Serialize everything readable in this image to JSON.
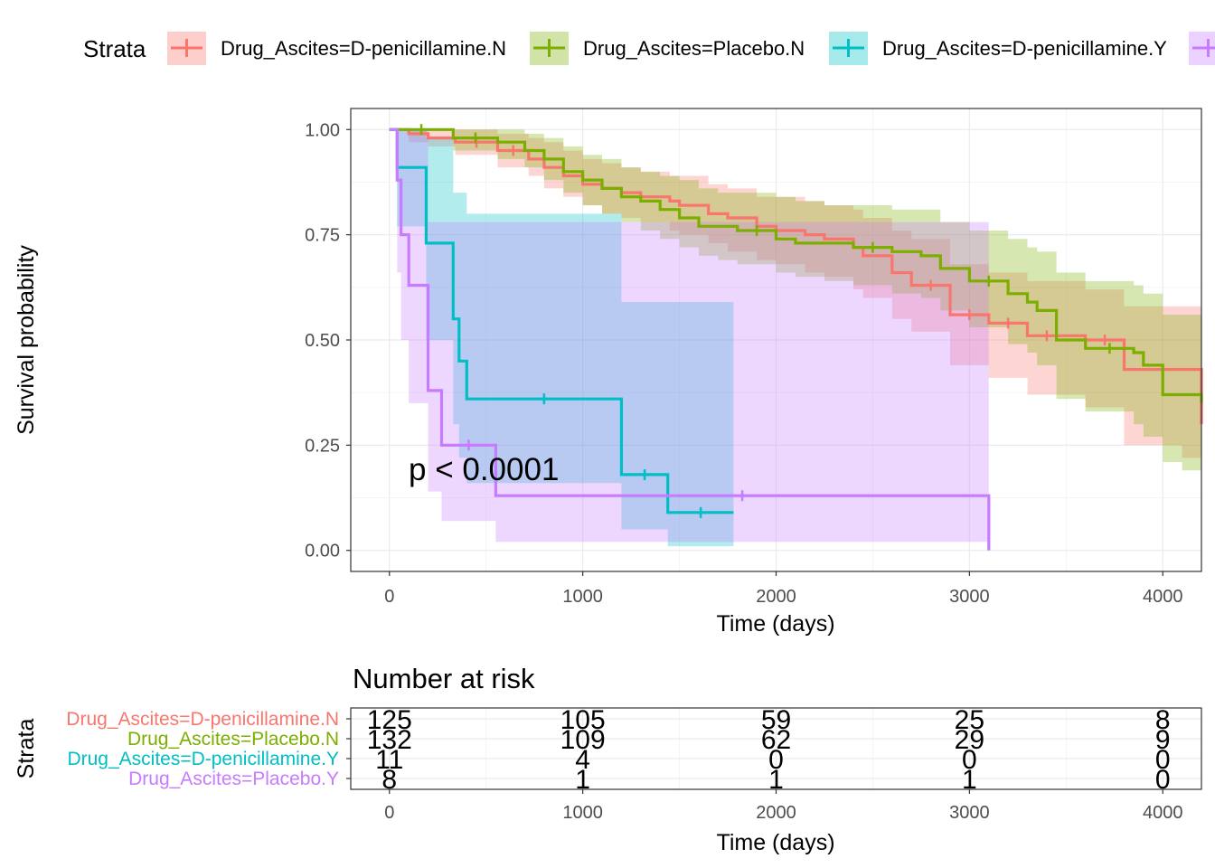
{
  "legend": {
    "title": "Strata",
    "items": [
      {
        "label": "Drug_Ascites=D-penicillamine.N",
        "color": "#f8766d"
      },
      {
        "label": "Drug_Ascites=Placebo.N",
        "color": "#7cae00"
      },
      {
        "label": "Drug_Ascites=D-penicillamine.Y",
        "color": "#00bfc4"
      },
      {
        "label": "Drug_Ascites=Placebo.Y",
        "color": "#c77cff"
      }
    ]
  },
  "chart_data": {
    "type": "line",
    "subtype": "kaplan-meier",
    "xlabel": "Time (days)",
    "ylabel": "Survival probability",
    "xlim": [
      -200,
      4200
    ],
    "ylim": [
      -0.05,
      1.05
    ],
    "xticks": [
      0,
      1000,
      2000,
      3000,
      4000
    ],
    "yticks": [
      0.0,
      0.25,
      0.5,
      0.75,
      1.0
    ],
    "ytick_labels": [
      "0.00",
      "0.25",
      "0.50",
      "0.75",
      "1.00"
    ],
    "grid": true,
    "legend_position": "top",
    "annotation": "p < 0.0001",
    "series": [
      {
        "name": "Drug_Ascites=D-penicillamine.N",
        "color": "#f8766d",
        "x": [
          0,
          100,
          200,
          340,
          560,
          720,
          800,
          900,
          1000,
          1100,
          1200,
          1300,
          1450,
          1500,
          1650,
          1750,
          1900,
          2000,
          2150,
          2250,
          2400,
          2450,
          2600,
          2700,
          2900,
          3100,
          3300,
          3500,
          3600,
          3800,
          3900,
          4000,
          4100,
          4200
        ],
        "y": [
          1.0,
          0.99,
          0.98,
          0.97,
          0.95,
          0.93,
          0.91,
          0.89,
          0.87,
          0.86,
          0.85,
          0.84,
          0.83,
          0.82,
          0.8,
          0.79,
          0.77,
          0.76,
          0.75,
          0.74,
          0.72,
          0.7,
          0.66,
          0.63,
          0.56,
          0.54,
          0.51,
          0.51,
          0.5,
          0.43,
          0.43,
          0.43,
          0.43,
          0.3
        ],
        "ci_lower": [
          1.0,
          0.97,
          0.96,
          0.94,
          0.91,
          0.89,
          0.86,
          0.84,
          0.82,
          0.8,
          0.79,
          0.78,
          0.76,
          0.75,
          0.73,
          0.71,
          0.69,
          0.68,
          0.66,
          0.65,
          0.62,
          0.6,
          0.55,
          0.52,
          0.44,
          0.41,
          0.37,
          0.37,
          0.34,
          0.25,
          0.25,
          0.25,
          0.22,
          0.15
        ],
        "ci_upper": [
          1.0,
          1.0,
          1.0,
          1.0,
          0.99,
          0.98,
          0.97,
          0.95,
          0.93,
          0.92,
          0.91,
          0.9,
          0.89,
          0.89,
          0.87,
          0.86,
          0.84,
          0.84,
          0.83,
          0.82,
          0.81,
          0.79,
          0.76,
          0.74,
          0.68,
          0.66,
          0.64,
          0.64,
          0.62,
          0.58,
          0.58,
          0.58,
          0.58,
          0.58
        ]
      },
      {
        "name": "Drug_Ascites=Placebo.N",
        "color": "#7cae00",
        "x": [
          0,
          330,
          560,
          700,
          800,
          900,
          1000,
          1100,
          1200,
          1300,
          1400,
          1500,
          1600,
          1700,
          1800,
          2000,
          2100,
          2250,
          2400,
          2600,
          2750,
          2850,
          3000,
          3200,
          3300,
          3350,
          3450,
          3600,
          3850,
          3900,
          4000,
          4100,
          4200
        ],
        "y": [
          1.0,
          0.98,
          0.97,
          0.95,
          0.93,
          0.9,
          0.88,
          0.86,
          0.84,
          0.83,
          0.81,
          0.79,
          0.77,
          0.77,
          0.76,
          0.74,
          0.73,
          0.73,
          0.72,
          0.71,
          0.7,
          0.67,
          0.64,
          0.61,
          0.59,
          0.57,
          0.5,
          0.48,
          0.47,
          0.44,
          0.37,
          0.37,
          0.35
        ],
        "ci_lower": [
          1.0,
          0.95,
          0.93,
          0.91,
          0.88,
          0.85,
          0.82,
          0.8,
          0.78,
          0.76,
          0.74,
          0.72,
          0.7,
          0.69,
          0.68,
          0.66,
          0.65,
          0.64,
          0.63,
          0.61,
          0.6,
          0.57,
          0.53,
          0.49,
          0.47,
          0.44,
          0.36,
          0.33,
          0.3,
          0.27,
          0.21,
          0.19,
          0.17
        ],
        "ci_upper": [
          1.0,
          1.0,
          1.0,
          0.99,
          0.98,
          0.96,
          0.94,
          0.93,
          0.91,
          0.9,
          0.89,
          0.88,
          0.86,
          0.85,
          0.85,
          0.84,
          0.83,
          0.82,
          0.82,
          0.81,
          0.81,
          0.78,
          0.76,
          0.74,
          0.72,
          0.71,
          0.66,
          0.64,
          0.63,
          0.61,
          0.56,
          0.56,
          0.56
        ]
      },
      {
        "name": "Drug_Ascites=D-penicillamine.Y",
        "color": "#00bfc4",
        "x": [
          0,
          40,
          190,
          330,
          360,
          400,
          1200,
          1440,
          1780
        ],
        "y": [
          1.0,
          0.91,
          0.73,
          0.55,
          0.45,
          0.36,
          0.18,
          0.09,
          0.09
        ],
        "ci_lower": [
          1.0,
          0.77,
          0.5,
          0.3,
          0.22,
          0.16,
          0.05,
          0.01,
          0.01
        ],
        "ci_upper": [
          1.0,
          1.0,
          0.98,
          0.85,
          0.85,
          0.8,
          0.59,
          0.59,
          0.59
        ]
      },
      {
        "name": "Drug_Ascites=Placebo.Y",
        "color": "#c77cff",
        "x": [
          0,
          40,
          60,
          100,
          200,
          270,
          550,
          3100
        ],
        "y": [
          1.0,
          0.88,
          0.75,
          0.63,
          0.38,
          0.25,
          0.13,
          0.0
        ],
        "ci_lower": [
          1.0,
          0.66,
          0.5,
          0.35,
          0.14,
          0.07,
          0.02,
          0.0
        ],
        "ci_upper": [
          1.0,
          1.0,
          1.0,
          1.0,
          0.78,
          0.78,
          0.78,
          0.78
        ]
      }
    ]
  },
  "risk_table": {
    "title": "Number at risk",
    "ylabel": "Strata",
    "xlabel": "Time (days)",
    "times": [
      0,
      1000,
      2000,
      3000,
      4000
    ],
    "rows": [
      {
        "label": "Drug_Ascites=D-penicillamine.N",
        "color": "#f8766d",
        "values": [
          "125",
          "105",
          "59",
          "25",
          "8"
        ]
      },
      {
        "label": "Drug_Ascites=Placebo.N",
        "color": "#7cae00",
        "values": [
          "132",
          "109",
          "62",
          "29",
          "9"
        ]
      },
      {
        "label": "Drug_Ascites=D-penicillamine.Y",
        "color": "#00bfc4",
        "values": [
          "11",
          "4",
          "0",
          "0",
          "0"
        ]
      },
      {
        "label": "Drug_Ascites=Placebo.Y",
        "color": "#c77cff",
        "values": [
          "8",
          "1",
          "1",
          "1",
          "0"
        ]
      }
    ]
  }
}
